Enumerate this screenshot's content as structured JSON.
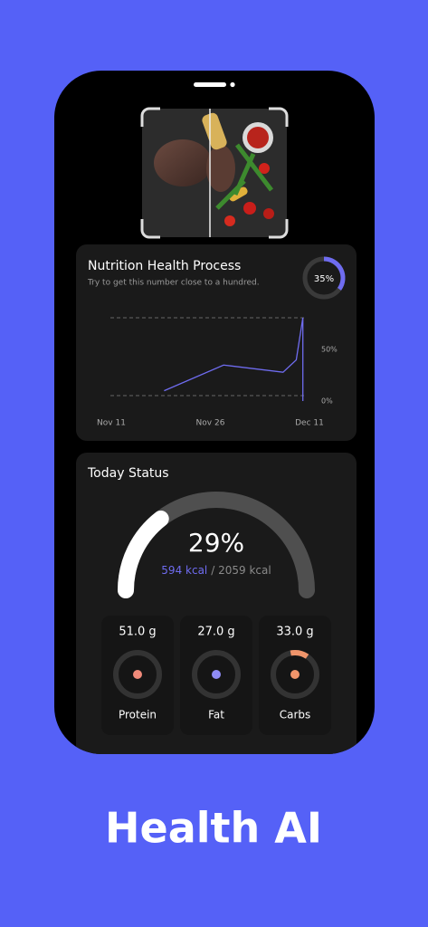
{
  "nutrition": {
    "title": "Nutrition Health Process",
    "subtitle": "Try to get this number close to a hundred.",
    "score": 35,
    "score_label": "35%",
    "chart": {
      "type": "line",
      "x": [
        8,
        17,
        26,
        28,
        29,
        29
      ],
      "values": [
        10,
        35,
        28,
        40,
        81,
        0
      ],
      "color": "#6f6cf0",
      "xlim": [
        0,
        30
      ],
      "xticks": [
        {
          "value": 0,
          "label": "Nov 11"
        },
        {
          "value": 15,
          "label": "Nov 26"
        },
        {
          "value": 30,
          "label": "Dec 11"
        }
      ],
      "ylim": [
        0,
        81
      ],
      "yticks": [
        {
          "value": 50,
          "label": "50%"
        },
        {
          "value": 0,
          "label": "0%"
        }
      ]
    }
  },
  "today": {
    "title": "Today Status",
    "percent": 29,
    "percent_label": "29%",
    "consumed": "594 kcal",
    "goal": "/ 2059 kcal",
    "macros": [
      {
        "amount": "51.0 g",
        "name": "Protein"
      },
      {
        "amount": "27.0 g",
        "name": "Fat"
      },
      {
        "amount": "33.0 g",
        "name": "Carbs"
      }
    ]
  },
  "caption": "Health AI"
}
